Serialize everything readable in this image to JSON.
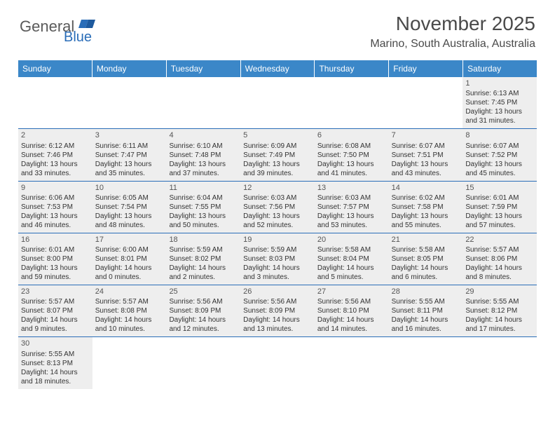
{
  "logo": {
    "main": "General",
    "sub": "Blue",
    "main_color": "#5a5a5a",
    "sub_color": "#2a6db8"
  },
  "title": "November 2025",
  "location": "Marino, South Australia, Australia",
  "colors": {
    "header_bg": "#3b87c8",
    "header_text": "#ffffff",
    "cell_bg": "#eeeeee",
    "row_border": "#2a6db8",
    "text": "#333333"
  },
  "day_headers": [
    "Sunday",
    "Monday",
    "Tuesday",
    "Wednesday",
    "Thursday",
    "Friday",
    "Saturday"
  ],
  "weeks": [
    [
      {
        "empty": true
      },
      {
        "empty": true
      },
      {
        "empty": true
      },
      {
        "empty": true
      },
      {
        "empty": true
      },
      {
        "empty": true
      },
      {
        "day": "1",
        "sunrise": "6:13 AM",
        "sunset": "7:45 PM",
        "daylight": "13 hours and 31 minutes."
      }
    ],
    [
      {
        "day": "2",
        "sunrise": "6:12 AM",
        "sunset": "7:46 PM",
        "daylight": "13 hours and 33 minutes."
      },
      {
        "day": "3",
        "sunrise": "6:11 AM",
        "sunset": "7:47 PM",
        "daylight": "13 hours and 35 minutes."
      },
      {
        "day": "4",
        "sunrise": "6:10 AM",
        "sunset": "7:48 PM",
        "daylight": "13 hours and 37 minutes."
      },
      {
        "day": "5",
        "sunrise": "6:09 AM",
        "sunset": "7:49 PM",
        "daylight": "13 hours and 39 minutes."
      },
      {
        "day": "6",
        "sunrise": "6:08 AM",
        "sunset": "7:50 PM",
        "daylight": "13 hours and 41 minutes."
      },
      {
        "day": "7",
        "sunrise": "6:07 AM",
        "sunset": "7:51 PM",
        "daylight": "13 hours and 43 minutes."
      },
      {
        "day": "8",
        "sunrise": "6:07 AM",
        "sunset": "7:52 PM",
        "daylight": "13 hours and 45 minutes."
      }
    ],
    [
      {
        "day": "9",
        "sunrise": "6:06 AM",
        "sunset": "7:53 PM",
        "daylight": "13 hours and 46 minutes."
      },
      {
        "day": "10",
        "sunrise": "6:05 AM",
        "sunset": "7:54 PM",
        "daylight": "13 hours and 48 minutes."
      },
      {
        "day": "11",
        "sunrise": "6:04 AM",
        "sunset": "7:55 PM",
        "daylight": "13 hours and 50 minutes."
      },
      {
        "day": "12",
        "sunrise": "6:03 AM",
        "sunset": "7:56 PM",
        "daylight": "13 hours and 52 minutes."
      },
      {
        "day": "13",
        "sunrise": "6:03 AM",
        "sunset": "7:57 PM",
        "daylight": "13 hours and 53 minutes."
      },
      {
        "day": "14",
        "sunrise": "6:02 AM",
        "sunset": "7:58 PM",
        "daylight": "13 hours and 55 minutes."
      },
      {
        "day": "15",
        "sunrise": "6:01 AM",
        "sunset": "7:59 PM",
        "daylight": "13 hours and 57 minutes."
      }
    ],
    [
      {
        "day": "16",
        "sunrise": "6:01 AM",
        "sunset": "8:00 PM",
        "daylight": "13 hours and 59 minutes."
      },
      {
        "day": "17",
        "sunrise": "6:00 AM",
        "sunset": "8:01 PM",
        "daylight": "14 hours and 0 minutes."
      },
      {
        "day": "18",
        "sunrise": "5:59 AM",
        "sunset": "8:02 PM",
        "daylight": "14 hours and 2 minutes."
      },
      {
        "day": "19",
        "sunrise": "5:59 AM",
        "sunset": "8:03 PM",
        "daylight": "14 hours and 3 minutes."
      },
      {
        "day": "20",
        "sunrise": "5:58 AM",
        "sunset": "8:04 PM",
        "daylight": "14 hours and 5 minutes."
      },
      {
        "day": "21",
        "sunrise": "5:58 AM",
        "sunset": "8:05 PM",
        "daylight": "14 hours and 6 minutes."
      },
      {
        "day": "22",
        "sunrise": "5:57 AM",
        "sunset": "8:06 PM",
        "daylight": "14 hours and 8 minutes."
      }
    ],
    [
      {
        "day": "23",
        "sunrise": "5:57 AM",
        "sunset": "8:07 PM",
        "daylight": "14 hours and 9 minutes."
      },
      {
        "day": "24",
        "sunrise": "5:57 AM",
        "sunset": "8:08 PM",
        "daylight": "14 hours and 10 minutes."
      },
      {
        "day": "25",
        "sunrise": "5:56 AM",
        "sunset": "8:09 PM",
        "daylight": "14 hours and 12 minutes."
      },
      {
        "day": "26",
        "sunrise": "5:56 AM",
        "sunset": "8:09 PM",
        "daylight": "14 hours and 13 minutes."
      },
      {
        "day": "27",
        "sunrise": "5:56 AM",
        "sunset": "8:10 PM",
        "daylight": "14 hours and 14 minutes."
      },
      {
        "day": "28",
        "sunrise": "5:55 AM",
        "sunset": "8:11 PM",
        "daylight": "14 hours and 16 minutes."
      },
      {
        "day": "29",
        "sunrise": "5:55 AM",
        "sunset": "8:12 PM",
        "daylight": "14 hours and 17 minutes."
      }
    ],
    [
      {
        "day": "30",
        "sunrise": "5:55 AM",
        "sunset": "8:13 PM",
        "daylight": "14 hours and 18 minutes."
      },
      {
        "empty": true
      },
      {
        "empty": true
      },
      {
        "empty": true
      },
      {
        "empty": true
      },
      {
        "empty": true
      },
      {
        "empty": true
      }
    ]
  ],
  "labels": {
    "sunrise": "Sunrise: ",
    "sunset": "Sunset: ",
    "daylight": "Daylight: "
  }
}
